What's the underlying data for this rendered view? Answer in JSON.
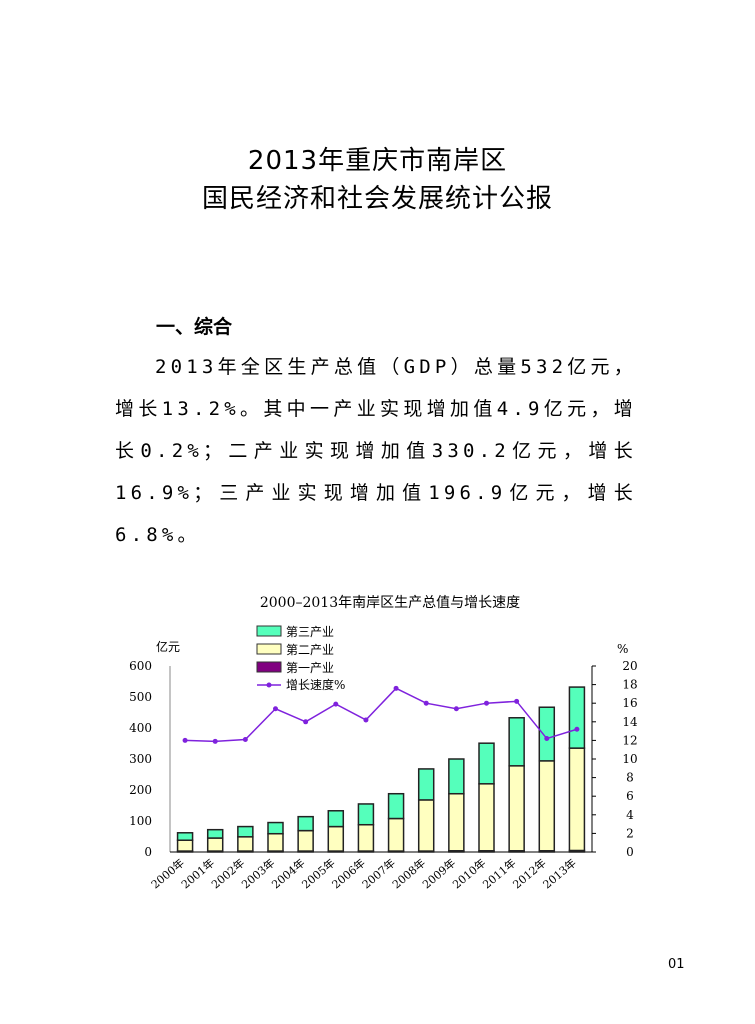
{
  "document": {
    "title_line1": "2013年重庆市南岸区",
    "title_line2": "国民经济和社会发展统计公报",
    "section_heading": "一、综合",
    "paragraph": "2013年全区生产总值（GDP）总量532亿元，增长13.2%。其中一产业实现增加值4.9亿元，增长0.2%；二产业实现增加值330.2亿元，增长16.9%；三产业实现增加值196.9亿元，增长6.8%。",
    "page_number": "01"
  },
  "chart_data": {
    "type": "bar",
    "stacked": true,
    "title": "2000–2013年南岸区生产总值与增长速度",
    "ylabel": "亿元",
    "y2label": "%",
    "ylim": [
      0,
      600
    ],
    "yticks": [
      0,
      100,
      200,
      300,
      400,
      500,
      600
    ],
    "y2lim": [
      0,
      20
    ],
    "y2ticks": [
      0,
      2,
      4,
      6,
      8,
      10,
      12,
      14,
      16,
      18,
      20
    ],
    "grid": false,
    "legend_position": "top-center",
    "categories": [
      "2000年",
      "2001年",
      "2002年",
      "2003年",
      "2004年",
      "2005年",
      "2006年",
      "2007年",
      "2008年",
      "2009年",
      "2010年",
      "2011年",
      "2012年",
      "2013年"
    ],
    "series": [
      {
        "name": "第一产业",
        "color": "#800080",
        "values": [
          3,
          3,
          3,
          3,
          3,
          3,
          3,
          3,
          3,
          4,
          4,
          4,
          4,
          4.9
        ]
      },
      {
        "name": "第二产业",
        "color": "#ffffc0",
        "values": [
          35,
          42,
          46,
          56,
          66,
          79,
          85,
          105,
          165,
          184,
          216,
          274,
          290,
          330.2
        ]
      },
      {
        "name": "第三产业",
        "color": "#55ffbb",
        "values": [
          24,
          27,
          33,
          36,
          45,
          51,
          67,
          80,
          100,
          112,
          131,
          155,
          173,
          196.9
        ]
      },
      {
        "name": "增长速度%",
        "type": "line",
        "axis": "right",
        "color": "#7f22dd",
        "values": [
          12.0,
          11.9,
          12.1,
          15.4,
          14.0,
          15.9,
          14.2,
          17.6,
          16.0,
          15.4,
          16.0,
          16.2,
          12.2,
          13.2
        ]
      }
    ]
  }
}
